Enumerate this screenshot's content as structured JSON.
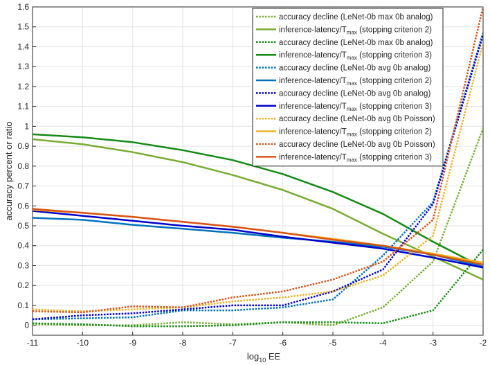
{
  "chart_data": {
    "type": "line",
    "xlabel": "log",
    "xlabel_sub": "10",
    "xlabel_tail": " EE",
    "ylabel": "accuracy percent or ratio",
    "xlim": [
      -11,
      -2
    ],
    "ylim": [
      -0.05,
      1.6
    ],
    "xticks": [
      -11,
      -10,
      -9,
      -8,
      -7,
      -6,
      -5,
      -4,
      -3,
      -2
    ],
    "yticks": [
      0,
      0.1,
      0.2,
      0.3,
      0.4,
      0.5,
      0.6,
      0.7,
      0.8,
      0.9,
      1,
      1.1,
      1.2,
      1.3,
      1.4,
      1.5,
      1.6
    ],
    "grid": true,
    "legend_position": "top-right",
    "x": [
      -11,
      -10,
      -9,
      -8,
      -7,
      -6,
      -5,
      -4,
      -3,
      -2
    ],
    "series": [
      {
        "name": "accuracy decline (LeNet-0b max 0b analog)",
        "color": "#77ac30",
        "style": "dotted",
        "values": [
          0.005,
          0.0,
          0.0,
          0.015,
          0.005,
          0.015,
          0.0,
          0.09,
          0.32,
          0.99
        ]
      },
      {
        "name": "inference-latency/T",
        "name_sub": "max",
        "name_tail": " (stopping criterion 2)",
        "color": "#77ac30",
        "style": "solid",
        "values": [
          0.935,
          0.91,
          0.87,
          0.82,
          0.755,
          0.68,
          0.585,
          0.46,
          0.345,
          0.23
        ]
      },
      {
        "name": "accuracy decline (LeNet-0b max 0b analog)",
        "color": "#138a13",
        "style": "dotted",
        "values": [
          0.01,
          0.005,
          -0.005,
          -0.005,
          0.0,
          0.015,
          0.015,
          0.01,
          0.075,
          0.38
        ]
      },
      {
        "name": "inference-latency/T",
        "name_sub": "max",
        "name_tail": " (stopping criterion 3)",
        "color": "#138a13",
        "style": "solid",
        "values": [
          0.96,
          0.945,
          0.92,
          0.88,
          0.83,
          0.76,
          0.67,
          0.56,
          0.42,
          0.29
        ]
      },
      {
        "name": "accuracy decline (LeNet-0b avg 0b analog)",
        "color": "#0072bd",
        "style": "dotted",
        "values": [
          0.03,
          0.035,
          0.04,
          0.075,
          0.075,
          0.09,
          0.13,
          0.35,
          0.62,
          1.47
        ]
      },
      {
        "name": "inference-latency/T",
        "name_sub": "max",
        "name_tail": " (stopping criterion 2)",
        "color": "#0072bd",
        "style": "solid",
        "values": [
          0.54,
          0.53,
          0.505,
          0.485,
          0.465,
          0.44,
          0.42,
          0.395,
          0.355,
          0.295
        ]
      },
      {
        "name": "accuracy decline (LeNet-0b avg 0b analog)",
        "color": "#0000cc",
        "style": "dotted",
        "values": [
          0.03,
          0.05,
          0.06,
          0.08,
          0.1,
          0.1,
          0.17,
          0.28,
          0.61,
          1.46
        ]
      },
      {
        "name": "inference-latency/T",
        "name_sub": "max",
        "name_tail": " (stopping criterion 3)",
        "color": "#0000cc",
        "style": "solid",
        "values": [
          0.575,
          0.55,
          0.525,
          0.5,
          0.48,
          0.445,
          0.415,
          0.385,
          0.34,
          0.29
        ]
      },
      {
        "name": "accuracy decline (LeNet-0b avg 0b Poisson)",
        "color": "#edb120",
        "style": "dotted",
        "values": [
          0.08,
          0.07,
          0.08,
          0.09,
          0.12,
          0.14,
          0.17,
          0.25,
          0.45,
          1.42
        ]
      },
      {
        "name": "inference-latency/T",
        "name_sub": "max",
        "name_tail": " (stopping criterion 2)",
        "color": "#edb120",
        "style": "solid",
        "values": [
          0.58,
          0.565,
          0.545,
          0.52,
          0.495,
          0.465,
          0.435,
          0.4,
          0.36,
          0.315
        ]
      },
      {
        "name": "accuracy decline (LeNet-0b avg 0b Poisson)",
        "color": "#d95319",
        "style": "dotted",
        "values": [
          0.07,
          0.065,
          0.095,
          0.09,
          0.14,
          0.17,
          0.23,
          0.32,
          0.53,
          1.6
        ]
      },
      {
        "name": "inference-latency/T",
        "name_sub": "max",
        "name_tail": " (stopping criterion 3)",
        "color": "#d95319",
        "style": "solid",
        "values": [
          0.585,
          0.565,
          0.545,
          0.52,
          0.495,
          0.465,
          0.43,
          0.4,
          0.355,
          0.305
        ]
      }
    ]
  }
}
